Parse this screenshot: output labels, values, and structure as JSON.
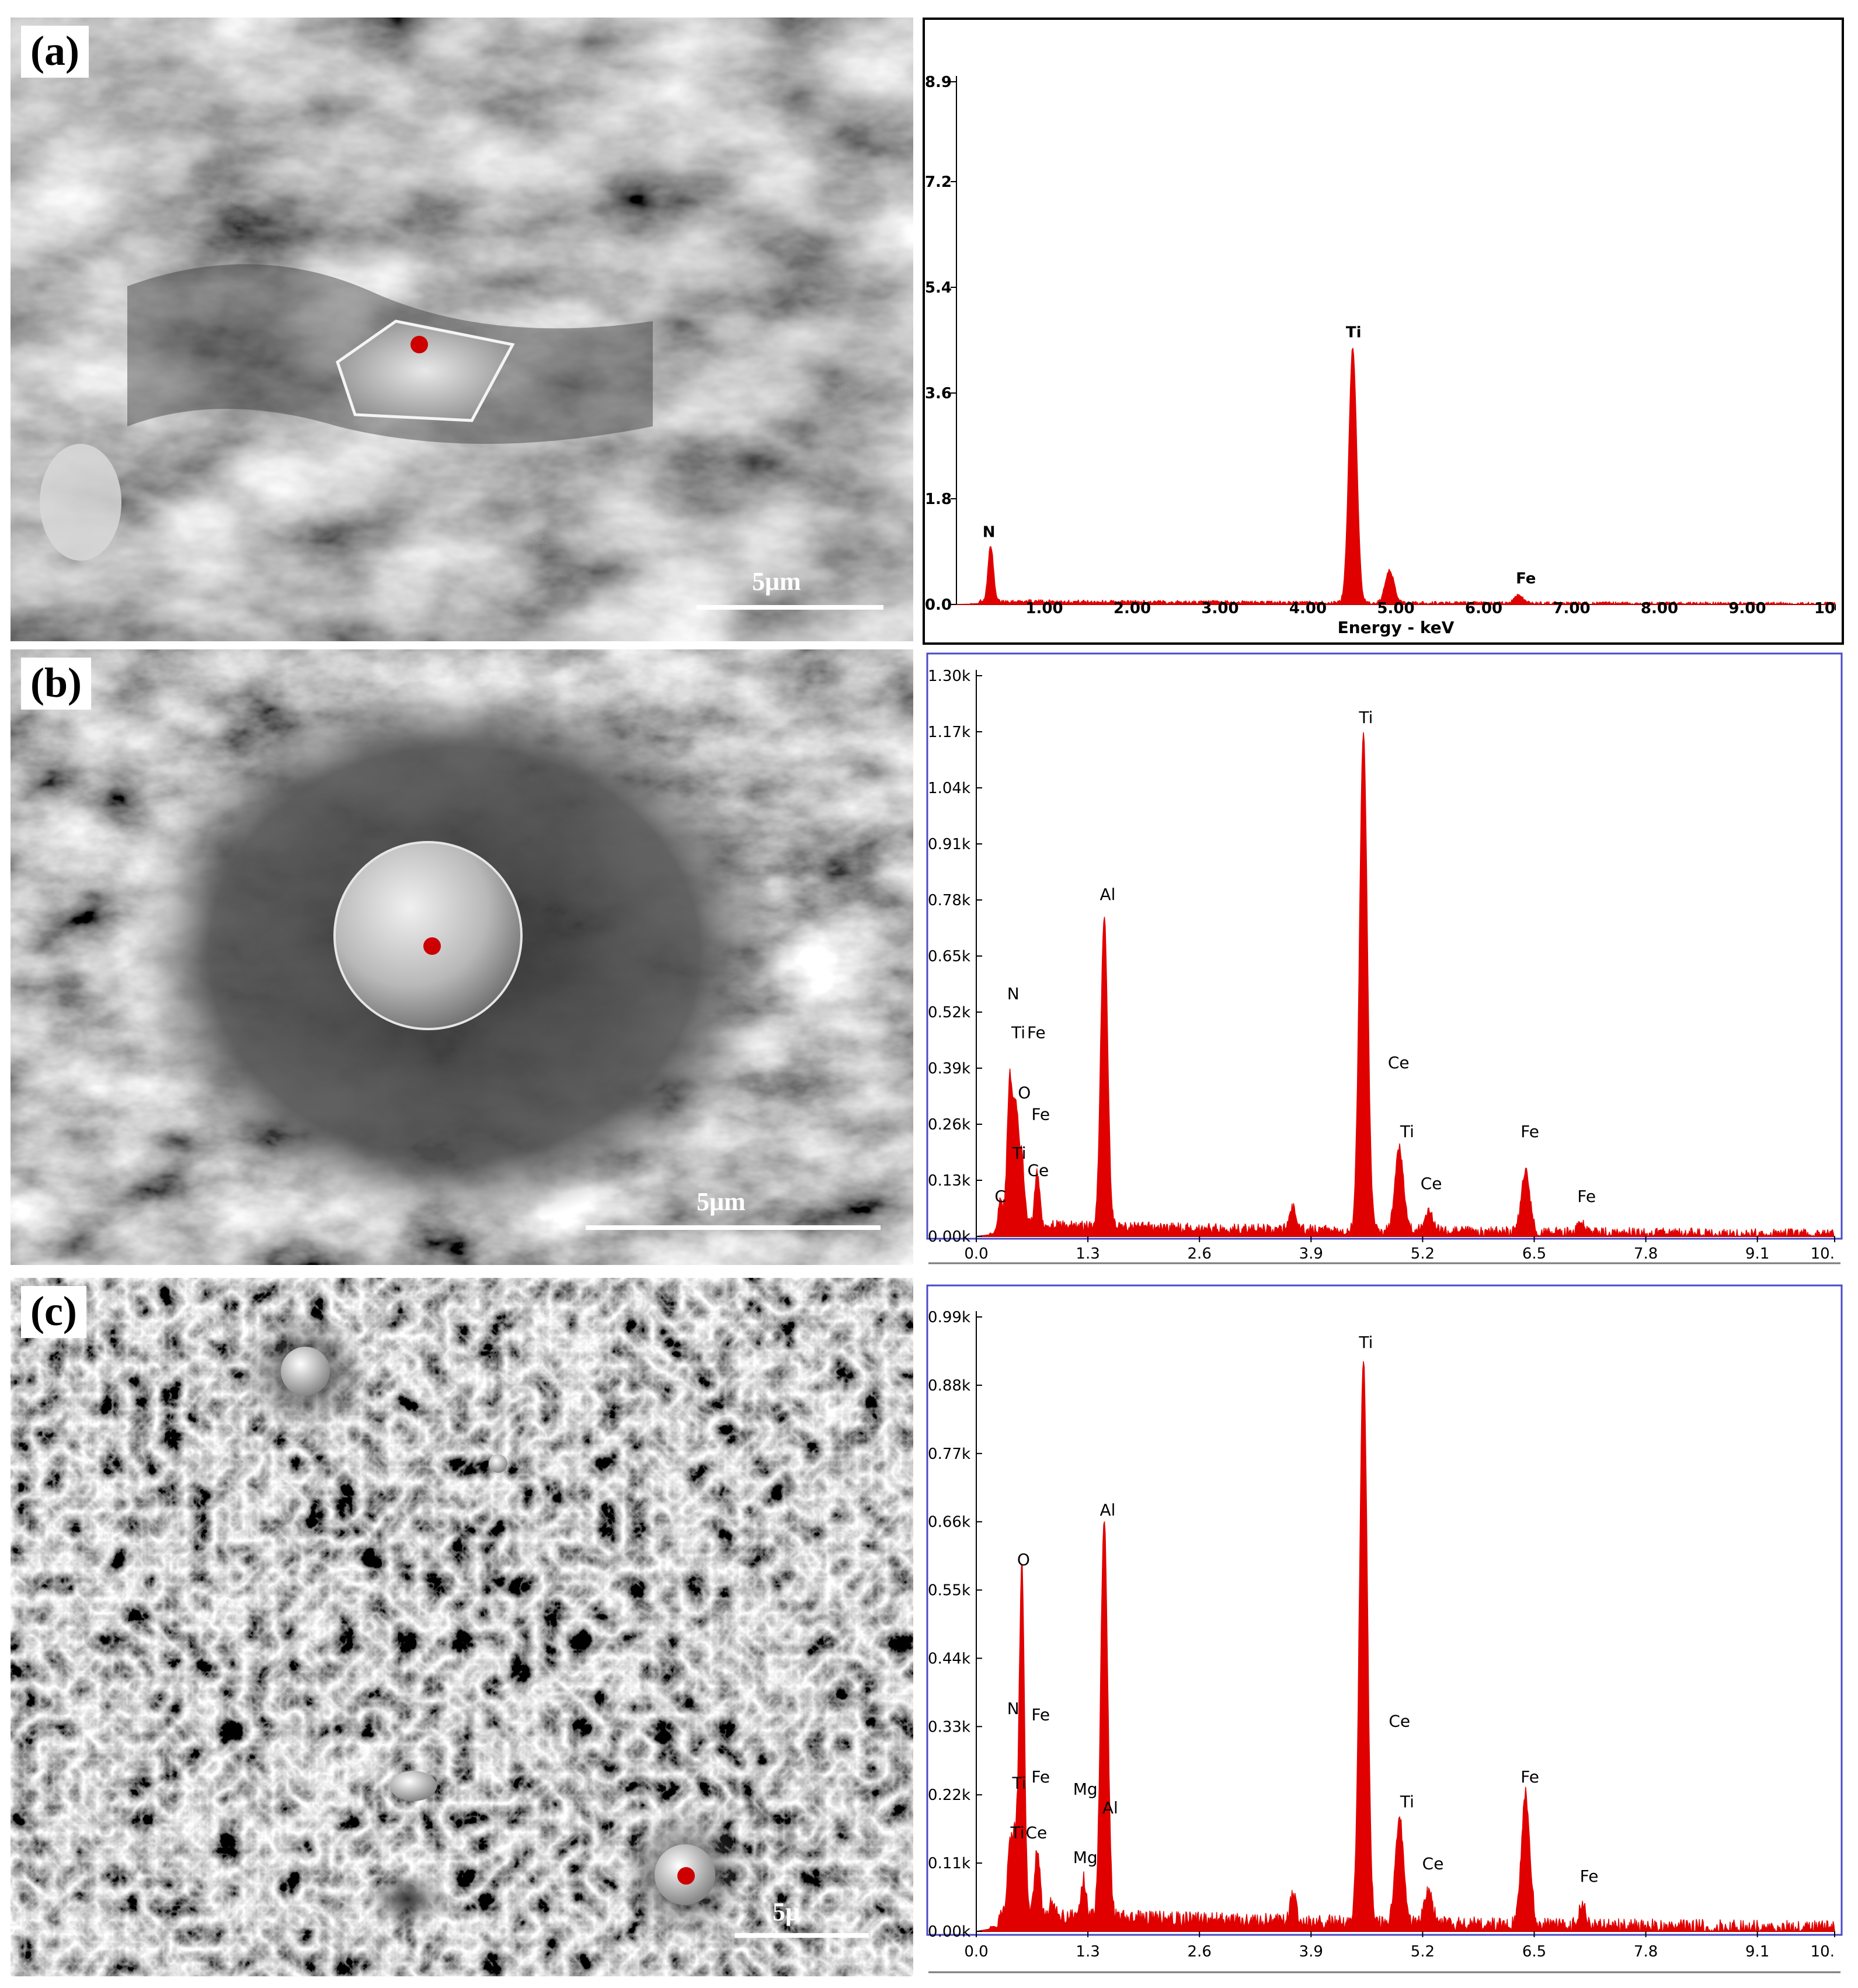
{
  "panels": [
    {
      "label": "(a)",
      "scale_bar": "5μm"
    },
    {
      "label": "(b)",
      "scale_bar": "5μm"
    },
    {
      "label": "(c)",
      "scale_bar": "5μ"
    }
  ],
  "colors": {
    "spectrum_fill": "#e00000",
    "frame_b_c": "#4a4ac8",
    "marker": "#cc0000"
  },
  "chart_data": [
    {
      "type": "area",
      "xlabel": "Energy - keV",
      "ylabel": "",
      "xlim": [
        0,
        10
      ],
      "ylim": [
        0,
        8.9
      ],
      "x_ticks": [
        1.0,
        2.0,
        3.0,
        4.0,
        5.0,
        6.0,
        7.0,
        8.0,
        9.0,
        10
      ],
      "x_tick_labels": [
        "1.00",
        "2.00",
        "3.00",
        "4.00",
        "5.00",
        "6.00",
        "7.00",
        "8.00",
        "9.00",
        "10"
      ],
      "y_ticks": [
        0,
        1.8,
        3.6,
        5.4,
        7.2,
        8.9
      ],
      "y_tick_labels": [
        "0.0",
        "1.8",
        "3.6",
        "5.4",
        "7.2",
        "8.9"
      ],
      "baseline": 0.06,
      "noise": 0.03,
      "peaks": [
        {
          "x": 0.39,
          "y": 0.95,
          "w": 0.03
        },
        {
          "x": 4.51,
          "y": 4.35,
          "w": 0.045
        },
        {
          "x": 4.93,
          "y": 0.55,
          "w": 0.05
        },
        {
          "x": 6.4,
          "y": 0.14,
          "w": 0.05
        }
      ],
      "annotations": [
        {
          "text": "N",
          "x": 0.37,
          "y": 1.15
        },
        {
          "text": "Ti",
          "x": 4.52,
          "y": 4.55
        },
        {
          "text": "Fe",
          "x": 6.48,
          "y": 0.36
        }
      ]
    },
    {
      "type": "area",
      "xlabel": "",
      "ylabel": "",
      "xlim": [
        0,
        10
      ],
      "ylim": [
        0,
        1.3
      ],
      "x_ticks": [
        0.0,
        1.3,
        2.6,
        3.9,
        5.2,
        6.5,
        7.8,
        9.1,
        10
      ],
      "x_tick_labels": [
        "0.0",
        "1.3",
        "2.6",
        "3.9",
        "5.2",
        "6.5",
        "7.8",
        "9.1",
        "10."
      ],
      "y_ticks": [
        0,
        0.13,
        0.26,
        0.39,
        0.52,
        0.65,
        0.78,
        0.91,
        1.04,
        1.17,
        1.3
      ],
      "y_tick_labels": [
        "0.00k",
        "0.13k",
        "0.26k",
        "0.39k",
        "0.52k",
        "0.65k",
        "0.78k",
        "0.91k",
        "1.04k",
        "1.17k",
        "1.30k"
      ],
      "baseline": 0.03,
      "noise": 0.012,
      "peaks": [
        {
          "x": 0.28,
          "y": 0.06,
          "w": 0.03
        },
        {
          "x": 0.39,
          "y": 0.33,
          "w": 0.03
        },
        {
          "x": 0.46,
          "y": 0.26,
          "w": 0.03
        },
        {
          "x": 0.53,
          "y": 0.15,
          "w": 0.03
        },
        {
          "x": 0.71,
          "y": 0.12,
          "w": 0.03
        },
        {
          "x": 1.49,
          "y": 0.72,
          "w": 0.04
        },
        {
          "x": 3.69,
          "y": 0.05,
          "w": 0.04
        },
        {
          "x": 4.51,
          "y": 1.16,
          "w": 0.045
        },
        {
          "x": 4.93,
          "y": 0.19,
          "w": 0.05
        },
        {
          "x": 5.27,
          "y": 0.05,
          "w": 0.05
        },
        {
          "x": 6.4,
          "y": 0.14,
          "w": 0.05
        },
        {
          "x": 7.06,
          "y": 0.02,
          "w": 0.05
        }
      ],
      "annotations": [
        {
          "text": "C",
          "x": 0.28,
          "y": 0.08
        },
        {
          "text": "N",
          "x": 0.43,
          "y": 0.55
        },
        {
          "text": "Ti",
          "x": 0.49,
          "y": 0.46
        },
        {
          "text": "Fe",
          "x": 0.7,
          "y": 0.46
        },
        {
          "text": "O",
          "x": 0.56,
          "y": 0.32
        },
        {
          "text": "Fe",
          "x": 0.75,
          "y": 0.27
        },
        {
          "text": "Ti",
          "x": 0.5,
          "y": 0.18
        },
        {
          "text": "Ce",
          "x": 0.72,
          "y": 0.14
        },
        {
          "text": "Al",
          "x": 1.53,
          "y": 0.78
        },
        {
          "text": "Ti",
          "x": 4.54,
          "y": 1.19
        },
        {
          "text": "Ce",
          "x": 4.92,
          "y": 0.39
        },
        {
          "text": "Ti",
          "x": 5.02,
          "y": 0.23
        },
        {
          "text": "Ce",
          "x": 5.3,
          "y": 0.11
        },
        {
          "text": "Fe",
          "x": 6.45,
          "y": 0.23
        },
        {
          "text": "Fe",
          "x": 7.11,
          "y": 0.08
        }
      ]
    },
    {
      "type": "area",
      "xlabel": "",
      "ylabel": "",
      "xlim": [
        0,
        10
      ],
      "ylim": [
        0,
        0.99
      ],
      "x_ticks": [
        0.0,
        1.3,
        2.6,
        3.9,
        5.2,
        6.5,
        7.8,
        9.1,
        10
      ],
      "x_tick_labels": [
        "0.0",
        "1.3",
        "2.6",
        "3.9",
        "5.2",
        "6.5",
        "7.8",
        "9.1",
        "10."
      ],
      "y_ticks": [
        0,
        0.11,
        0.22,
        0.33,
        0.44,
        0.55,
        0.66,
        0.77,
        0.88,
        0.99
      ],
      "y_tick_labels": [
        "0.00k",
        "0.11k",
        "0.22k",
        "0.33k",
        "0.44k",
        "0.55k",
        "0.66k",
        "0.77k",
        "0.88k",
        "0.99k"
      ],
      "baseline": 0.03,
      "noise": 0.012,
      "peaks": [
        {
          "x": 0.39,
          "y": 0.1,
          "w": 0.03
        },
        {
          "x": 0.45,
          "y": 0.11,
          "w": 0.03
        },
        {
          "x": 0.53,
          "y": 0.56,
          "w": 0.03
        },
        {
          "x": 0.71,
          "y": 0.11,
          "w": 0.03
        },
        {
          "x": 0.88,
          "y": 0.02,
          "w": 0.03
        },
        {
          "x": 1.25,
          "y": 0.06,
          "w": 0.03
        },
        {
          "x": 1.49,
          "y": 0.65,
          "w": 0.04
        },
        {
          "x": 3.69,
          "y": 0.04,
          "w": 0.04
        },
        {
          "x": 4.51,
          "y": 0.91,
          "w": 0.045
        },
        {
          "x": 4.93,
          "y": 0.17,
          "w": 0.05
        },
        {
          "x": 5.27,
          "y": 0.05,
          "w": 0.05
        },
        {
          "x": 6.4,
          "y": 0.21,
          "w": 0.05
        },
        {
          "x": 7.06,
          "y": 0.03,
          "w": 0.05
        }
      ],
      "annotations": [
        {
          "text": "O",
          "x": 0.55,
          "y": 0.59
        },
        {
          "text": "N",
          "x": 0.43,
          "y": 0.35
        },
        {
          "text": "Fe",
          "x": 0.75,
          "y": 0.34
        },
        {
          "text": "Fe",
          "x": 0.75,
          "y": 0.24
        },
        {
          "text": "Ti",
          "x": 0.5,
          "y": 0.23
        },
        {
          "text": "Ti",
          "x": 0.48,
          "y": 0.15
        },
        {
          "text": "Ce",
          "x": 0.7,
          "y": 0.15
        },
        {
          "text": "Mg",
          "x": 1.27,
          "y": 0.22
        },
        {
          "text": "Mg",
          "x": 1.27,
          "y": 0.11
        },
        {
          "text": "Al",
          "x": 1.53,
          "y": 0.67
        },
        {
          "text": "Al",
          "x": 1.56,
          "y": 0.19
        },
        {
          "text": "Ti",
          "x": 4.54,
          "y": 0.94
        },
        {
          "text": "Ce",
          "x": 4.93,
          "y": 0.33
        },
        {
          "text": "Ti",
          "x": 5.02,
          "y": 0.2
        },
        {
          "text": "Ce",
          "x": 5.32,
          "y": 0.1
        },
        {
          "text": "Fe",
          "x": 6.45,
          "y": 0.24
        },
        {
          "text": "Fe",
          "x": 7.14,
          "y": 0.08
        }
      ]
    }
  ]
}
